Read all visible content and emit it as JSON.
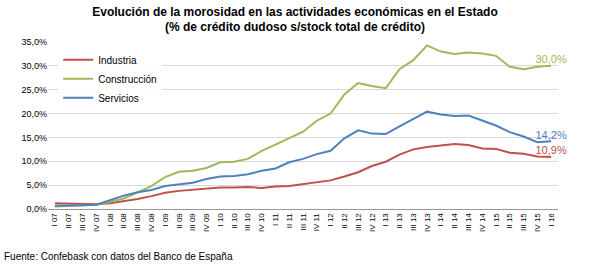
{
  "chart_data": {
    "type": "line",
    "title": "Evolución de la morosidad en las actividades económicas en el Estado",
    "subtitle": "(% de crédito dudoso s/stock total de crédito)",
    "annotations": [
      "Fuente: Confebask con datos del Banco de España"
    ],
    "categories": [
      "I 07",
      "II 07",
      "III 07",
      "IV 07",
      "I 08",
      "II 08",
      "III 08",
      "IV 08",
      "I 09",
      "II 09",
      "III 09",
      "IV 09",
      "I 10",
      "II 10",
      "III 10",
      "IV 10",
      "I 11",
      "II 11",
      "III 11",
      "IV 11",
      "I 12",
      "II 12",
      "III 12",
      "IV 12",
      "I 13",
      "II 13",
      "III 13",
      "IV 13",
      "I 14",
      "II 14",
      "III 14",
      "IV 14",
      "I 15",
      "II 15",
      "III 15",
      "IV 15",
      "I 16"
    ],
    "series": [
      {
        "name": "Industria",
        "color": "#c0504d",
        "values": [
          1.2,
          1.1,
          1.0,
          1.0,
          1.2,
          1.6,
          2.1,
          2.7,
          3.4,
          3.8,
          4.0,
          4.3,
          4.5,
          4.5,
          4.6,
          4.4,
          4.7,
          4.8,
          5.2,
          5.5,
          6.0,
          6.8,
          7.7,
          9.0,
          9.9,
          11.4,
          12.5,
          13.0,
          13.3,
          13.6,
          13.4,
          12.7,
          12.6,
          11.8,
          11.6,
          11.0,
          10.9
        ],
        "value_labels": [
          null,
          null,
          null,
          null,
          null,
          null,
          null,
          null,
          null,
          null,
          null,
          null,
          null,
          null,
          null,
          null,
          null,
          null,
          null,
          null,
          null,
          null,
          null,
          null,
          null,
          null,
          null,
          null,
          null,
          null,
          null,
          null,
          null,
          null,
          null,
          null,
          "10,9%"
        ]
      },
      {
        "name": "Construcción",
        "color": "#9bbb59",
        "values": [
          0.5,
          0.6,
          0.7,
          0.9,
          1.5,
          2.2,
          3.5,
          4.8,
          6.7,
          7.8,
          8.0,
          8.6,
          9.8,
          9.9,
          10.5,
          12.2,
          13.5,
          14.8,
          16.2,
          18.5,
          20.0,
          24.0,
          26.4,
          25.8,
          25.3,
          29.3,
          31.2,
          34.3,
          33.0,
          32.5,
          32.8,
          32.6,
          32.1,
          29.8,
          29.3,
          29.8,
          30.0
        ],
        "value_labels": [
          null,
          null,
          null,
          null,
          null,
          null,
          null,
          null,
          null,
          null,
          null,
          null,
          null,
          null,
          null,
          null,
          null,
          null,
          null,
          null,
          null,
          null,
          null,
          null,
          null,
          null,
          null,
          null,
          null,
          null,
          null,
          null,
          null,
          null,
          null,
          null,
          "30,0%"
        ]
      },
      {
        "name": "Servicios",
        "color": "#4f81bd",
        "values": [
          0.7,
          0.7,
          0.8,
          0.9,
          1.8,
          2.8,
          3.5,
          4.0,
          4.8,
          5.2,
          5.5,
          6.3,
          6.8,
          6.9,
          7.3,
          8.0,
          8.5,
          9.8,
          10.5,
          11.5,
          12.2,
          14.8,
          16.5,
          15.8,
          15.7,
          17.3,
          18.9,
          20.4,
          19.8,
          19.5,
          19.6,
          18.6,
          17.5,
          16.1,
          15.2,
          14.0,
          14.2
        ],
        "value_labels": [
          null,
          null,
          null,
          null,
          null,
          null,
          null,
          null,
          null,
          null,
          null,
          null,
          null,
          null,
          null,
          null,
          null,
          null,
          null,
          null,
          null,
          null,
          null,
          null,
          null,
          null,
          null,
          null,
          null,
          null,
          null,
          null,
          null,
          null,
          null,
          null,
          "14,2%"
        ]
      }
    ],
    "ylim": [
      0,
      35
    ],
    "yticks": [
      {
        "value": 0,
        "label": "0,0%"
      },
      {
        "value": 5,
        "label": "5,0%"
      },
      {
        "value": 10,
        "label": "10,0%"
      },
      {
        "value": 15,
        "label": "15,0%"
      },
      {
        "value": 20,
        "label": "20,0%"
      },
      {
        "value": 25,
        "label": "25,0%"
      },
      {
        "value": 30,
        "label": "30,0%"
      },
      {
        "value": 35,
        "label": "35,0%"
      }
    ],
    "grid": true,
    "legend": "top-left"
  }
}
